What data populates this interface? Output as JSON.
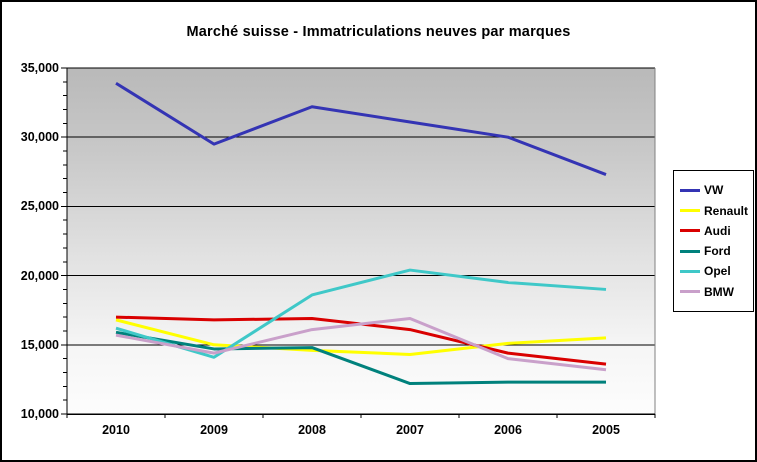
{
  "title": "Marché suisse - Immatriculations neuves par marques",
  "chart_data": {
    "type": "line",
    "categories": [
      "2010",
      "2009",
      "2008",
      "2007",
      "2006",
      "2005"
    ],
    "series": [
      {
        "name": "VW",
        "color": "#3434b4",
        "values": [
          33900,
          29500,
          32200,
          31100,
          30000,
          27300
        ]
      },
      {
        "name": "Renault",
        "color": "#ffff00",
        "values": [
          16800,
          15000,
          14600,
          14300,
          15100,
          15500
        ]
      },
      {
        "name": "Audi",
        "color": "#d90000",
        "values": [
          17000,
          16800,
          16900,
          16100,
          14400,
          13600
        ]
      },
      {
        "name": "Ford",
        "color": "#00817c",
        "values": [
          15900,
          14700,
          14800,
          12200,
          12300,
          12300
        ]
      },
      {
        "name": "Opel",
        "color": "#3fc8c8",
        "values": [
          16200,
          14100,
          18600,
          20400,
          19500,
          19000
        ]
      },
      {
        "name": "BMW",
        "color": "#c9a0ca",
        "values": [
          15700,
          14400,
          16100,
          16900,
          14000,
          13200
        ]
      }
    ],
    "title": "Marché suisse - Immatriculations neuves par marques",
    "xlabel": "",
    "ylabel": "",
    "ylim": [
      10000,
      35000
    ],
    "y_tick_step": 5000,
    "y_minor_tick_step": 1000,
    "y_tick_labels": [
      "10,000",
      "15,000",
      "20,000",
      "25,000",
      "30,000",
      "35,000"
    ],
    "grid": true,
    "legend_position": "right",
    "legend_labels": [
      "VW",
      "Renault",
      "Audi",
      "Ford",
      "Opel",
      "BMW"
    ]
  }
}
